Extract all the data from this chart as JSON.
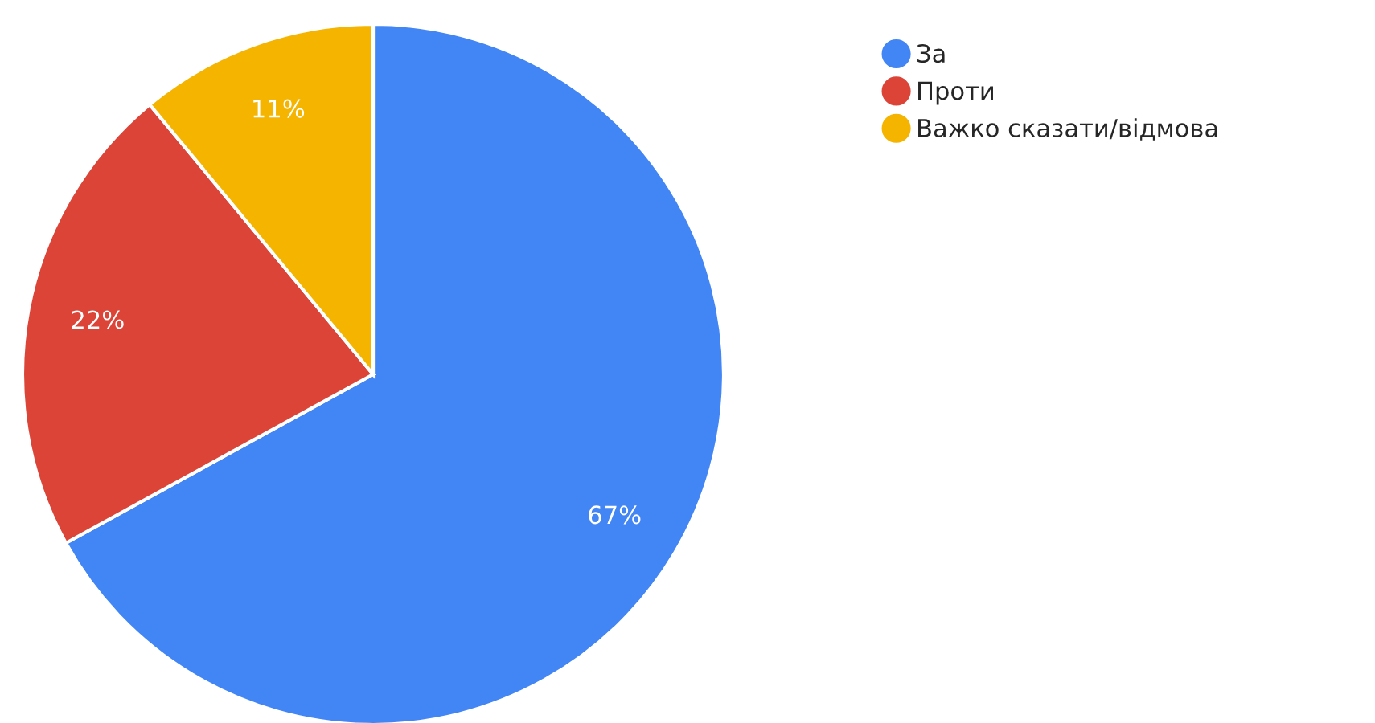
{
  "chart_data": {
    "type": "pie",
    "categories": [
      "За",
      "Проти",
      "Важко сказати/відмова"
    ],
    "values": [
      67,
      22,
      11
    ],
    "colors": [
      "#4285f4",
      "#db4437",
      "#f4b400"
    ],
    "value_labels": [
      "67%",
      "22%",
      "11%"
    ],
    "legend": "top right"
  }
}
